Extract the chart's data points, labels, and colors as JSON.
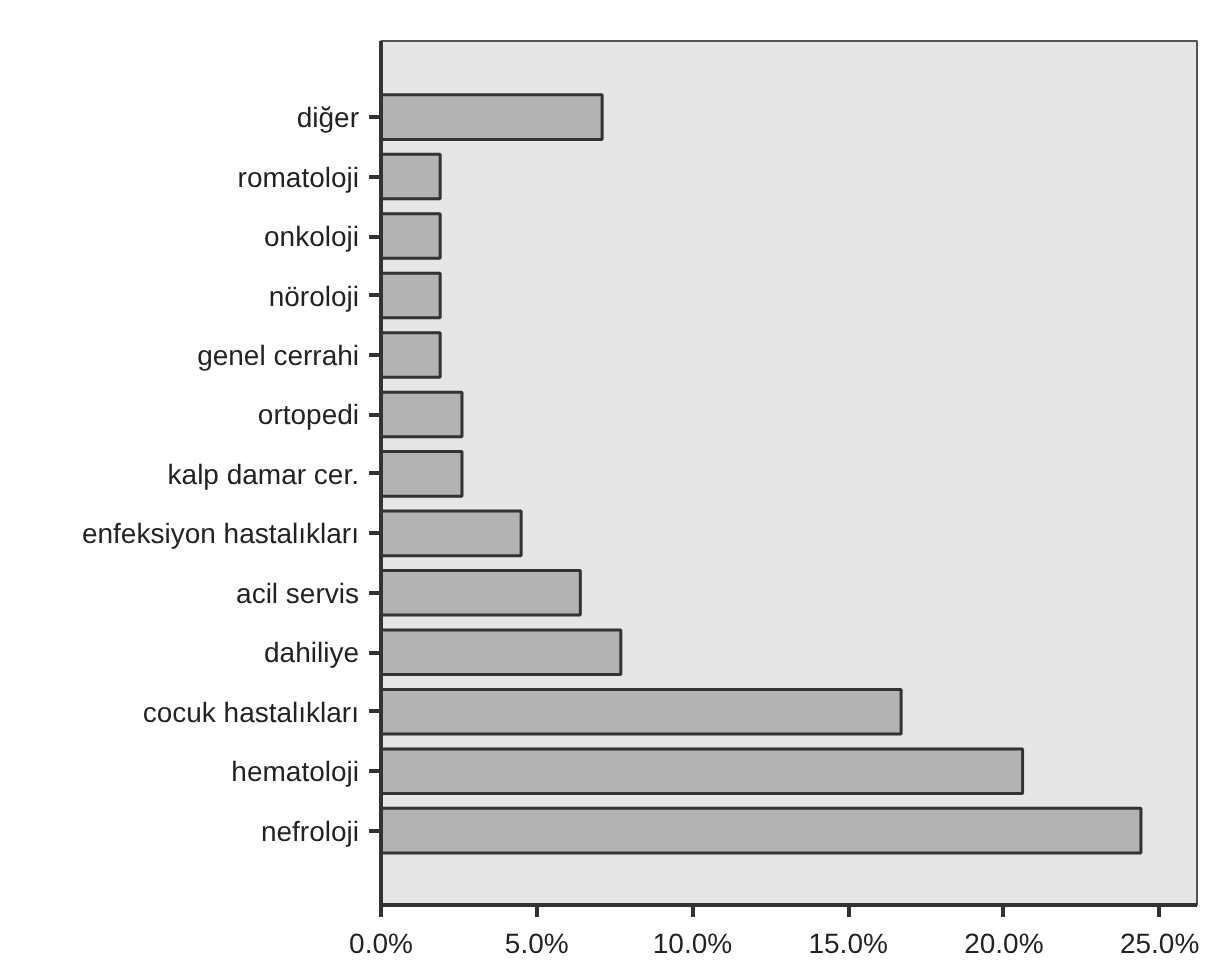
{
  "chart_data": {
    "type": "bar",
    "orientation": "horizontal",
    "categories": [
      "diğer",
      "romatoloji",
      "onkoloji",
      "nöroloji",
      "genel cerrahi",
      "ortopedi",
      "kalp damar cer.",
      "enfeksiyon hastalıkları",
      "acil servis",
      "dahiliye",
      "cocuk hastalıkları",
      "hematoloji",
      "nefroloji"
    ],
    "values": [
      7.1,
      1.9,
      1.9,
      1.9,
      1.9,
      2.6,
      2.6,
      4.5,
      6.4,
      7.7,
      16.7,
      20.6,
      24.4
    ],
    "color": "#b3b3b3",
    "xlim": [
      0,
      26.2
    ],
    "xticks": [
      {
        "value": 0,
        "label": "0.0%"
      },
      {
        "value": 5,
        "label": "5.0%"
      },
      {
        "value": 10,
        "label": "10.0%"
      },
      {
        "value": 15,
        "label": "15.0%"
      },
      {
        "value": 20,
        "label": "20.0%"
      },
      {
        "value": 25,
        "label": "25.0%"
      }
    ],
    "grid": false
  }
}
